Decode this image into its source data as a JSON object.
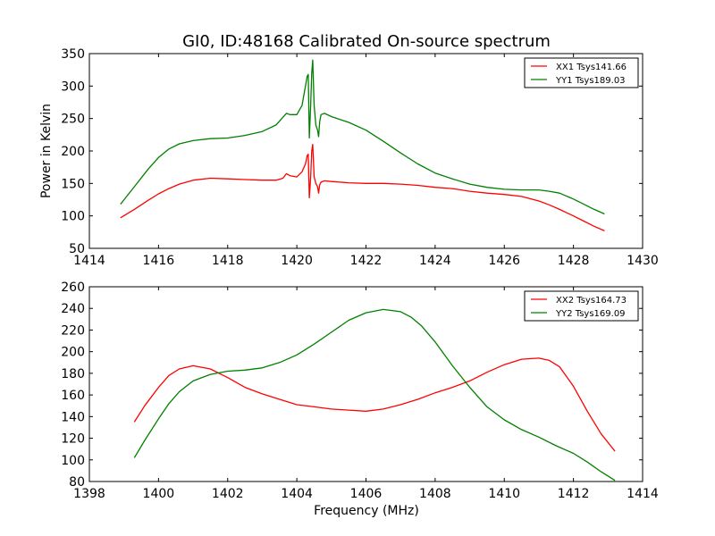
{
  "chart_data": [
    {
      "type": "line",
      "title": "GI0, ID:48168 Calibrated On-source spectrum",
      "xlabel": "",
      "ylabel": "Power in Kelvin",
      "xlim": [
        1414,
        1430
      ],
      "ylim": [
        50,
        350
      ],
      "xticks": [
        1414,
        1416,
        1418,
        1420,
        1422,
        1424,
        1426,
        1428,
        1430
      ],
      "yticks": [
        50,
        100,
        150,
        200,
        250,
        300,
        350
      ],
      "legend_position": "top-right",
      "series": [
        {
          "name": "XX1 Tsys141.66",
          "color": "#ff0000",
          "x": [
            1414.9,
            1415.3,
            1415.7,
            1416.0,
            1416.3,
            1416.6,
            1417.0,
            1417.5,
            1418.0,
            1418.5,
            1419.0,
            1419.4,
            1419.6,
            1419.7,
            1419.8,
            1420.0,
            1420.15,
            1420.25,
            1420.3,
            1420.33,
            1420.36,
            1420.4,
            1420.43,
            1420.46,
            1420.5,
            1420.55,
            1420.6,
            1420.63,
            1420.66,
            1420.7,
            1420.8,
            1421.0,
            1421.5,
            1422.0,
            1422.5,
            1423.0,
            1423.5,
            1424.0,
            1424.5,
            1425.0,
            1425.5,
            1426.0,
            1426.5,
            1427.0,
            1427.3,
            1427.6,
            1428.0,
            1428.3,
            1428.6,
            1428.9
          ],
          "y": [
            97,
            110,
            124,
            134,
            142,
            149,
            155,
            158,
            157,
            156,
            155,
            155,
            158,
            165,
            162,
            160,
            168,
            180,
            193,
            195,
            128,
            160,
            200,
            210,
            160,
            150,
            145,
            135,
            148,
            152,
            154,
            153,
            151,
            150,
            150,
            149,
            147,
            144,
            142,
            138,
            135,
            133,
            130,
            123,
            117,
            110,
            100,
            92,
            84,
            77
          ]
        },
        {
          "name": "YY1 Tsys189.03",
          "color": "#008000",
          "x": [
            1414.9,
            1415.3,
            1415.7,
            1416.0,
            1416.3,
            1416.6,
            1417.0,
            1417.5,
            1418.0,
            1418.5,
            1419.0,
            1419.4,
            1419.6,
            1419.7,
            1419.8,
            1420.0,
            1420.15,
            1420.25,
            1420.3,
            1420.33,
            1420.36,
            1420.4,
            1420.43,
            1420.46,
            1420.5,
            1420.55,
            1420.6,
            1420.63,
            1420.66,
            1420.7,
            1420.8,
            1421.0,
            1421.5,
            1422.0,
            1422.5,
            1423.0,
            1423.5,
            1424.0,
            1424.5,
            1425.0,
            1425.5,
            1426.0,
            1426.5,
            1427.0,
            1427.3,
            1427.6,
            1428.0,
            1428.3,
            1428.6,
            1428.9
          ],
          "y": [
            118,
            145,
            172,
            190,
            203,
            211,
            216,
            219,
            220,
            224,
            230,
            240,
            252,
            258,
            256,
            256,
            270,
            300,
            315,
            318,
            220,
            270,
            320,
            340,
            270,
            240,
            232,
            222,
            245,
            256,
            258,
            253,
            244,
            232,
            215,
            197,
            180,
            166,
            157,
            149,
            144,
            141,
            140,
            140,
            138,
            135,
            126,
            118,
            110,
            103
          ]
        }
      ]
    },
    {
      "type": "line",
      "title": "",
      "xlabel": "Frequency (MHz)",
      "ylabel": "",
      "xlim": [
        1398,
        1414
      ],
      "ylim": [
        80,
        260
      ],
      "xticks": [
        1398,
        1400,
        1402,
        1404,
        1406,
        1408,
        1410,
        1412,
        1414
      ],
      "yticks": [
        80,
        100,
        120,
        140,
        160,
        180,
        200,
        220,
        240,
        260
      ],
      "legend_position": "top-right",
      "series": [
        {
          "name": "XX2 Tsys164.73",
          "color": "#ff0000",
          "x": [
            1399.3,
            1399.6,
            1400.0,
            1400.3,
            1400.6,
            1401.0,
            1401.5,
            1402.0,
            1402.5,
            1403.0,
            1403.5,
            1404.0,
            1404.5,
            1405.0,
            1405.5,
            1406.0,
            1406.5,
            1407.0,
            1407.5,
            1408.0,
            1408.5,
            1409.0,
            1409.5,
            1410.0,
            1410.5,
            1411.0,
            1411.3,
            1411.6,
            1412.0,
            1412.4,
            1412.8,
            1413.2
          ],
          "y": [
            135,
            150,
            167,
            178,
            184,
            187,
            184,
            176,
            167,
            161,
            156,
            151,
            149,
            147,
            146,
            145,
            147,
            151,
            156,
            162,
            167,
            173,
            181,
            188,
            193,
            194,
            192,
            186,
            168,
            145,
            124,
            108
          ]
        },
        {
          "name": "YY2 Tsys169.09",
          "color": "#008000",
          "x": [
            1399.3,
            1399.6,
            1400.0,
            1400.3,
            1400.6,
            1401.0,
            1401.5,
            1402.0,
            1402.5,
            1403.0,
            1403.5,
            1404.0,
            1404.5,
            1405.0,
            1405.5,
            1406.0,
            1406.5,
            1407.0,
            1407.3,
            1407.6,
            1408.0,
            1408.5,
            1409.0,
            1409.5,
            1410.0,
            1410.5,
            1411.0,
            1411.5,
            1412.0,
            1412.4,
            1412.8,
            1413.2
          ],
          "y": [
            102,
            118,
            138,
            152,
            163,
            173,
            179,
            182,
            183,
            185,
            190,
            197,
            207,
            218,
            229,
            236,
            239,
            237,
            232,
            224,
            209,
            187,
            167,
            149,
            137,
            128,
            121,
            113,
            106,
            98,
            89,
            81
          ]
        }
      ]
    }
  ]
}
